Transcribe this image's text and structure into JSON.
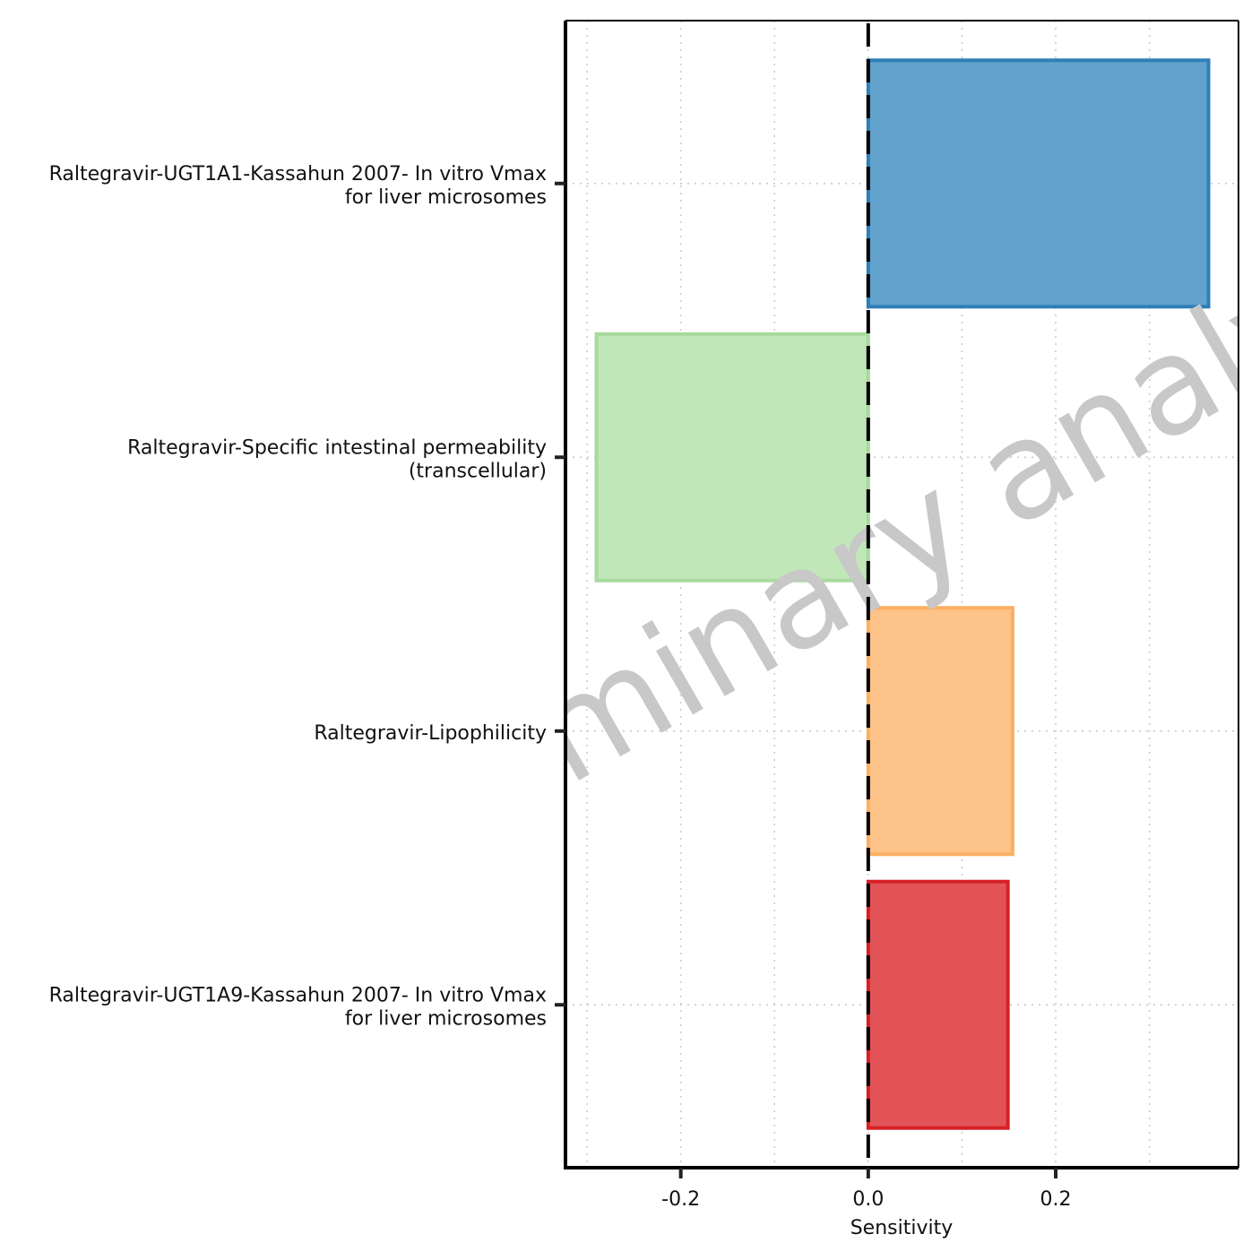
{
  "chart_data": {
    "type": "bar",
    "orientation": "horizontal",
    "categories": [
      [
        "Raltegravir-UGT1A1-Kassahun 2007- In vitro Vmax",
        "for liver microsomes"
      ],
      [
        "Raltegravir-Specific intestinal permeability",
        "(transcellular)"
      ],
      [
        "Raltegravir-Lipophilicity"
      ],
      [
        "Raltegravir-UGT1A9-Kassahun 2007- In vitro Vmax",
        "for liver microsomes"
      ]
    ],
    "values": [
      0.363,
      -0.29,
      0.154,
      0.149
    ],
    "colors": [
      {
        "fill": "#62a2cc",
        "stroke": "#2f7fb8"
      },
      {
        "fill": "#c1e7b9",
        "stroke": "#a8d99e"
      },
      {
        "fill": "#fec389",
        "stroke": "#fbaf62"
      },
      {
        "fill": "#e25357",
        "stroke": "#d62026"
      }
    ],
    "xlabel": "Sensitivity",
    "xlim": [
      -0.323,
      0.395
    ],
    "xticks": [
      -0.2,
      0.0,
      0.2
    ],
    "xtick_labels": [
      "-0.2",
      "0.0",
      "0.2"
    ],
    "grid": true,
    "reference_line": 0,
    "watermark": "Preliminary analysis"
  }
}
